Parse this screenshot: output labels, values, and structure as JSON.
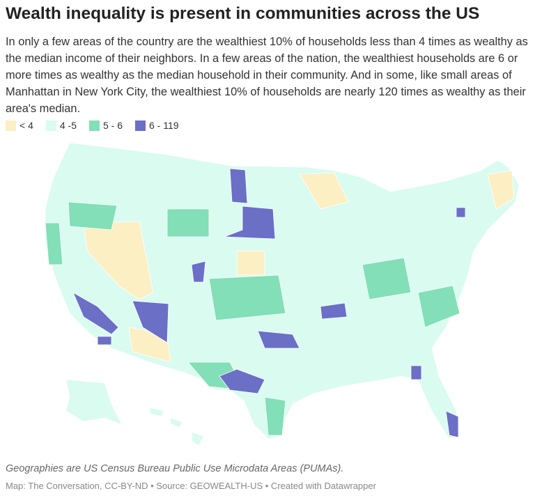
{
  "header": {
    "title": "Wealth inequality is present in communities across the US",
    "description": "In only a few areas of the country are the wealthiest 10% of households less than 4 times as wealthy as the median income of their neighbors. In a few areas of the nation, the wealthiest households are 6 or more times as wealthy as the median household in their community. And in some, like small areas of Manhattan in New York City, the wealthiest 10% of households are nearly 120 times as wealthy as their area's median."
  },
  "legend": [
    {
      "label": "< 4",
      "color": "#fcefc4"
    },
    {
      "label": "4 -5",
      "color": "#d9fbf0"
    },
    {
      "label": "5 - 6",
      "color": "#82dfb7"
    },
    {
      "label": "6 - 119",
      "color": "#6b6fc6"
    }
  ],
  "footer": {
    "note": "Geographies are US Census Bureau Public Use Microdata Areas (PUMAs).",
    "credit": "Map: The Conversation, CC-BY-ND • Source: GEOWEALTH-US • Created with Datawrapper"
  }
}
